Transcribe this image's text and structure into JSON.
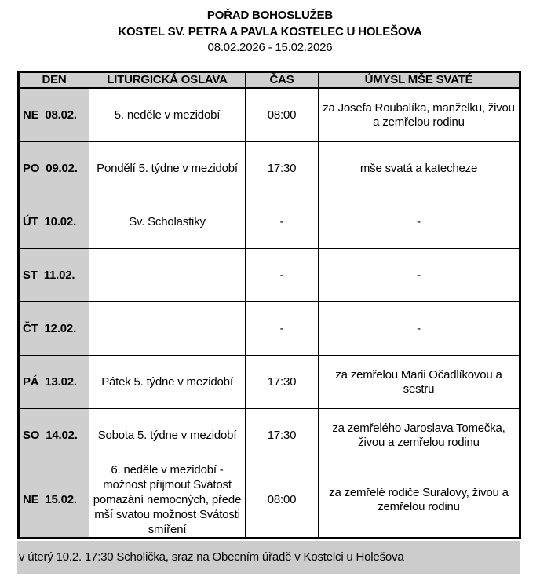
{
  "header": {
    "title": "POŘAD BOHOSLUŽEB",
    "church": "KOSTEL SV. PETRA A PAVLA KOSTELEC U HOLEŠOVA",
    "date_range": "08.02.2026 - 15.02.2026"
  },
  "table": {
    "columns": [
      "DEN",
      "LITURGICKÁ OSLAVA",
      "ČAS",
      "ÚMYSL MŠE SVATÉ"
    ],
    "rows": [
      {
        "day": "NE  08.02.",
        "celebration": "5. neděle v mezidobí",
        "time": "08:00",
        "intention": "za Josefa Roubalíka, manželku, živou a zemřelou rodinu"
      },
      {
        "day": "PO  09.02.",
        "celebration": "Pondělí 5. týdne v mezidobí",
        "time": "17:30",
        "intention": "mše svatá a katecheze"
      },
      {
        "day": "ÚT  10.02.",
        "celebration": "Sv. Scholastiky",
        "time": "-",
        "intention": "-"
      },
      {
        "day": "ST  11.02.",
        "celebration": "",
        "time": "-",
        "intention": "-"
      },
      {
        "day": "ČT  12.02.",
        "celebration": "",
        "time": "-",
        "intention": "-"
      },
      {
        "day": "PÁ  13.02.",
        "celebration": "Pátek 5. týdne v mezidobí",
        "time": "17:30",
        "intention": "za zemřelou Marii Očadlíkovou a sestru"
      },
      {
        "day": "SO  14.02.",
        "celebration": "Sobota 5. týdne v mezidobí",
        "time": "17:30",
        "intention": "za zemřelého Jaroslava Tomečka, živou a zemřelou rodinu"
      },
      {
        "day": "NE  15.02.",
        "celebration": "6. neděle v mezidobí - možnost přijmout Svátost pomazání nemocných, přede mší svatou možnost Svátosti smíření",
        "time": "08:00",
        "intention": "za zemřelé rodiče Suralovy, živou a zemřelou rodinu"
      }
    ]
  },
  "note": "v úterý 10.2. 17:30 Scholička, sraz na Obecním úřadě v Kostelci u Holešova",
  "colors": {
    "shade": "#cfcfcf",
    "note_bg": "#cccccc"
  }
}
